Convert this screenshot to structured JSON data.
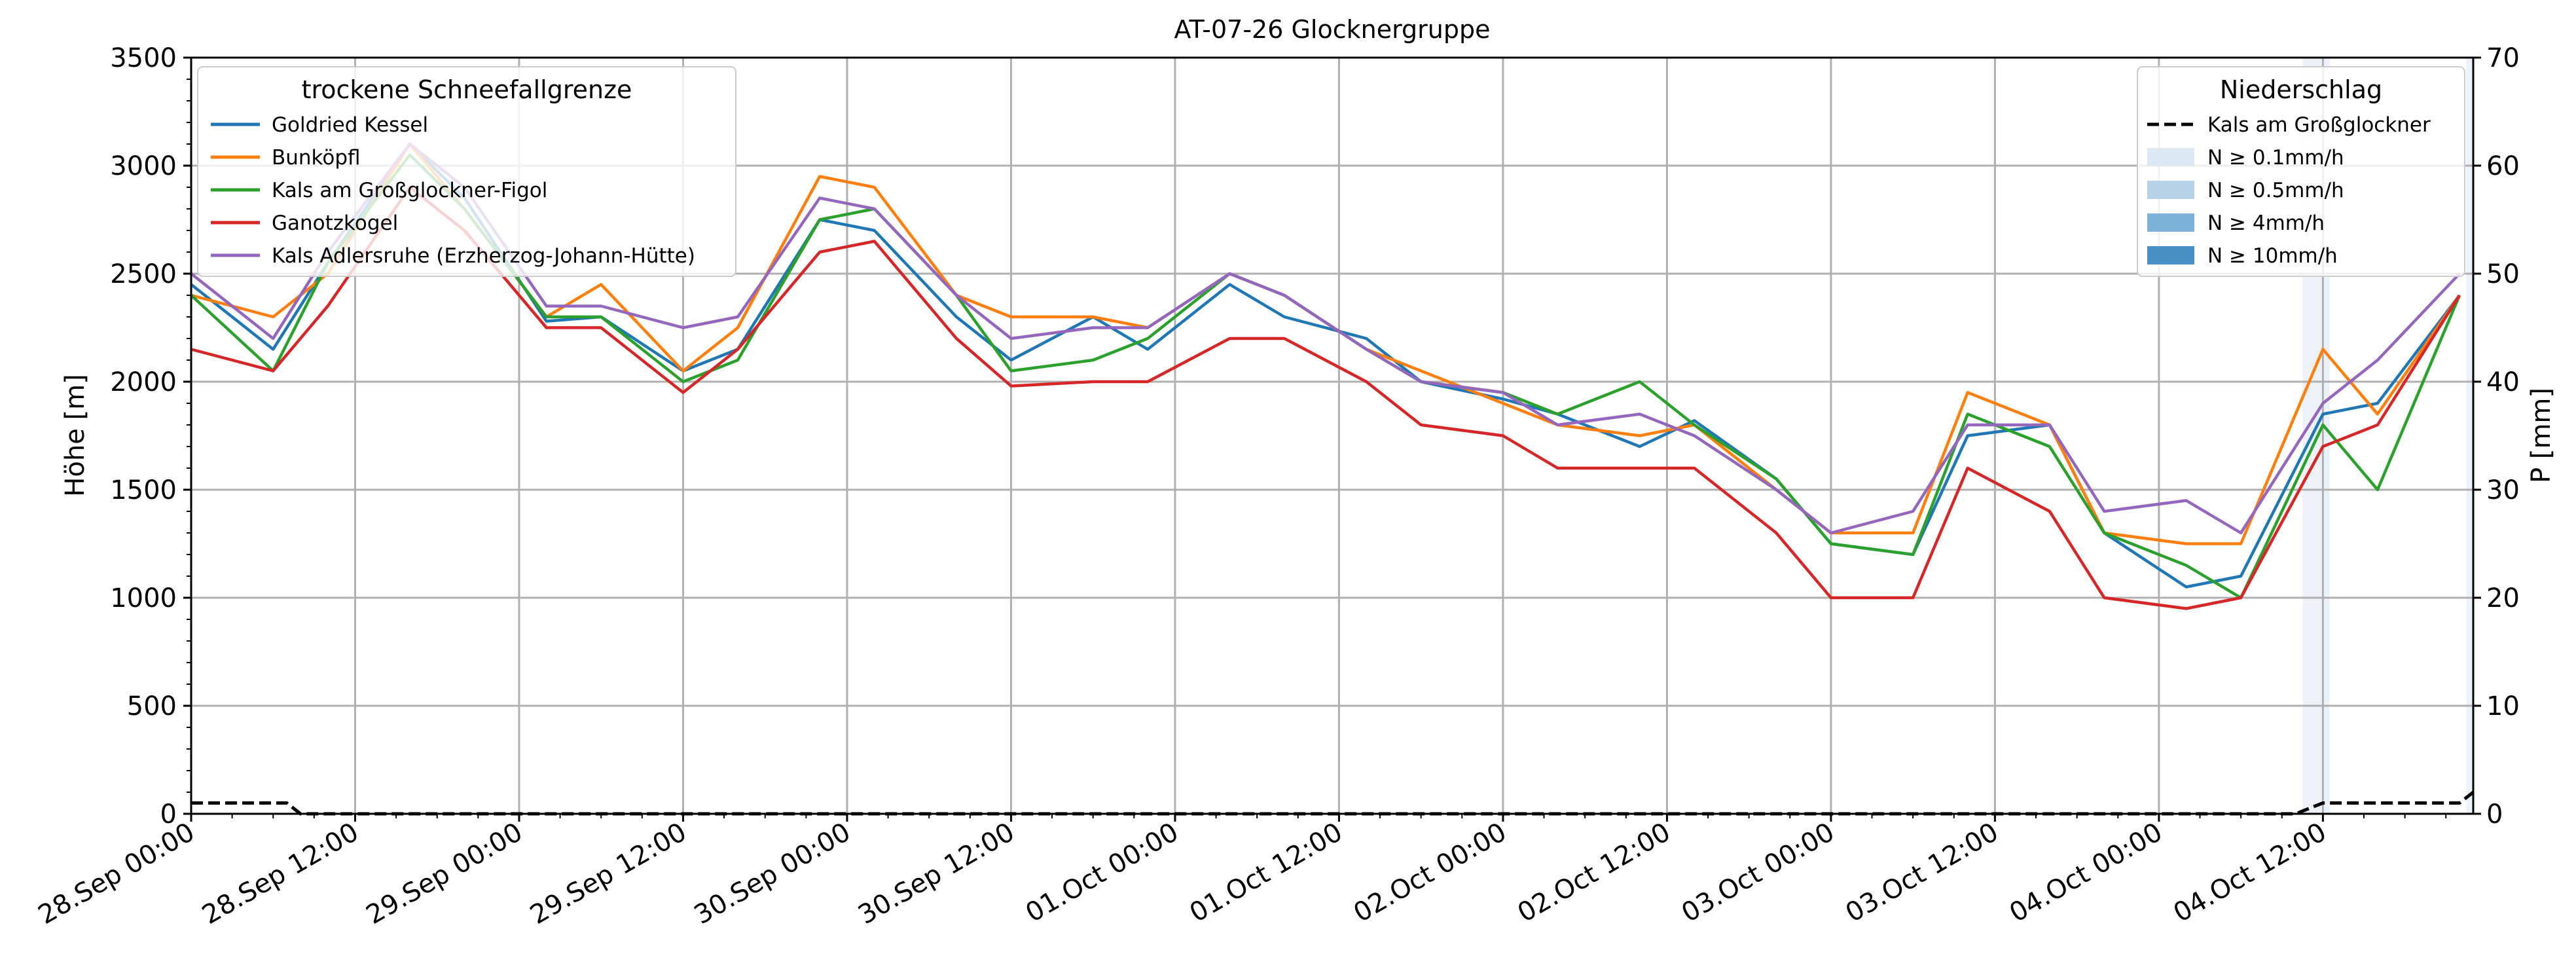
{
  "chart_data": {
    "type": "line",
    "title": "AT-07-26 Glocknergruppe",
    "ylabel": "Höhe [m]",
    "y2label": "P [mm]",
    "ylim": [
      0,
      3500
    ],
    "y2lim": [
      0,
      70
    ],
    "yticks": [
      0,
      500,
      1000,
      1500,
      2000,
      2500,
      3000,
      3500
    ],
    "y2ticks": [
      0,
      10,
      20,
      30,
      40,
      50,
      60,
      70
    ],
    "grid": true,
    "x_hours": [
      0,
      6,
      10,
      16,
      20,
      26,
      30,
      36,
      40,
      46,
      50,
      56,
      60,
      66,
      70,
      76,
      80,
      86,
      90,
      96,
      100,
      106,
      110,
      116,
      120,
      126,
      130,
      136,
      140,
      146,
      150,
      156,
      160,
      166
    ],
    "xticks": [
      {
        "hour": 0,
        "label": "28.Sep 00:00"
      },
      {
        "hour": 12,
        "label": "28.Sep 12:00"
      },
      {
        "hour": 24,
        "label": "29.Sep 00:00"
      },
      {
        "hour": 36,
        "label": "29.Sep 12:00"
      },
      {
        "hour": 48,
        "label": "30.Sep 00:00"
      },
      {
        "hour": 60,
        "label": "30.Sep 12:00"
      },
      {
        "hour": 72,
        "label": "01.Oct 00:00"
      },
      {
        "hour": 84,
        "label": "01.Oct 12:00"
      },
      {
        "hour": 96,
        "label": "02.Oct 00:00"
      },
      {
        "hour": 108,
        "label": "02.Oct 12:00"
      },
      {
        "hour": 120,
        "label": "03.Oct 00:00"
      },
      {
        "hour": 132,
        "label": "03.Oct 12:00"
      },
      {
        "hour": 144,
        "label": "04.Oct 00:00"
      },
      {
        "hour": 156,
        "label": "04.Oct 12:00"
      }
    ],
    "xrange_hours": [
      0,
      167
    ],
    "legend_left": {
      "title": "trockene Schneefallgrenze",
      "placement": "top-left"
    },
    "legend_right": {
      "title": "Niederschlag",
      "placement": "top-right",
      "entries": [
        {
          "label": "Kals am Großglockner",
          "style": "dashed",
          "color": "#000000"
        },
        {
          "label": "N ≥ 0.1mm/h",
          "color": "#dce8f3"
        },
        {
          "label": "N ≥ 0.5mm/h",
          "color": "#b7d1e8"
        },
        {
          "label": "N ≥ 4mm/h",
          "color": "#7fb2d9"
        },
        {
          "label": "N ≥ 10mm/h",
          "color": "#4a90c4"
        }
      ]
    },
    "series": [
      {
        "name": "Goldried Kessel",
        "color": "#1f77b4",
        "values": [
          2450,
          2150,
          2550,
          3100,
          2850,
          2280,
          2300,
          2050,
          2150,
          2750,
          2700,
          2300,
          2100,
          2300,
          2150,
          2450,
          2300,
          2200,
          2000,
          1920,
          1850,
          1700,
          1820,
          1550,
          1250,
          1200,
          1750,
          1800,
          1300,
          1050,
          1100,
          1850,
          1900,
          2400
        ]
      },
      {
        "name": "Bunköpfl",
        "color": "#ff7f0e",
        "values": [
          2400,
          2300,
          2500,
          3100,
          2800,
          2300,
          2450,
          2050,
          2250,
          2950,
          2900,
          2400,
          2300,
          2300,
          2250,
          2500,
          2400,
          2150,
          2050,
          1900,
          1800,
          1750,
          1800,
          1500,
          1300,
          1300,
          1950,
          1800,
          1300,
          1250,
          1250,
          2150,
          1850,
          2400
        ]
      },
      {
        "name": "Kals am Großglockner-Figol",
        "color": "#2ca02c",
        "values": [
          2400,
          2050,
          2550,
          3050,
          2800,
          2300,
          2300,
          2000,
          2100,
          2750,
          2800,
          2400,
          2050,
          2100,
          2200,
          2500,
          2400,
          2150,
          2000,
          1950,
          1850,
          2000,
          1800,
          1550,
          1250,
          1200,
          1850,
          1700,
          1300,
          1150,
          1000,
          1800,
          1500,
          2400
        ]
      },
      {
        "name": "Ganotzkogel",
        "color": "#d62728",
        "values": [
          2150,
          2050,
          2350,
          2900,
          2700,
          2250,
          2250,
          1950,
          2150,
          2600,
          2650,
          2200,
          1980,
          2000,
          2000,
          2200,
          2200,
          2000,
          1800,
          1750,
          1600,
          1600,
          1600,
          1300,
          1000,
          1000,
          1600,
          1400,
          1000,
          950,
          1000,
          1700,
          1800,
          2400
        ]
      },
      {
        "name": "Kals Adlersruhe (Erzherzog-Johann-Hütte)",
        "color": "#9467bd",
        "values": [
          2500,
          2200,
          2600,
          3100,
          2900,
          2350,
          2350,
          2250,
          2300,
          2850,
          2800,
          2400,
          2200,
          2250,
          2250,
          2500,
          2400,
          2150,
          2000,
          1950,
          1800,
          1850,
          1750,
          1500,
          1300,
          1400,
          1800,
          1800,
          1400,
          1450,
          1300,
          1900,
          2100,
          2500
        ]
      }
    ],
    "precip_series": {
      "name": "Kals am Großglockner",
      "hours": [
        0,
        7,
        8,
        154,
        156,
        158,
        166,
        167
      ],
      "values": [
        1,
        1,
        0,
        0,
        1,
        1,
        1,
        2
      ]
    },
    "precip_bands": [
      {
        "from_hour": 154.5,
        "to_hour": 156.5,
        "level": "N ≥ 0.1mm/h"
      },
      {
        "from_hour": 166.5,
        "to_hour": 167,
        "level": "N ≥ 0.1mm/h"
      }
    ]
  }
}
